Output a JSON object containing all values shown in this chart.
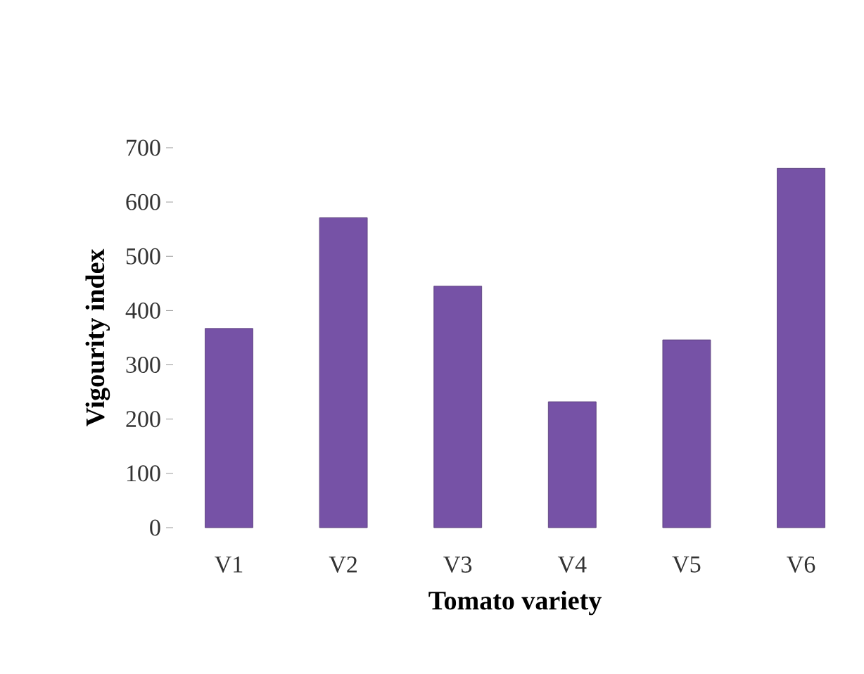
{
  "chart_data": {
    "type": "bar",
    "xlabel": "Tomato variety",
    "ylabel": "Vigourity index",
    "categories": [
      "V1",
      "V2",
      "V3",
      "V4",
      "V5",
      "V6"
    ],
    "values": [
      367,
      571,
      445,
      232,
      346,
      662
    ],
    "color": "#7652a6",
    "ylim": [
      0,
      700
    ],
    "yticks": [
      0,
      100,
      200,
      300,
      400,
      500,
      600,
      700
    ]
  }
}
